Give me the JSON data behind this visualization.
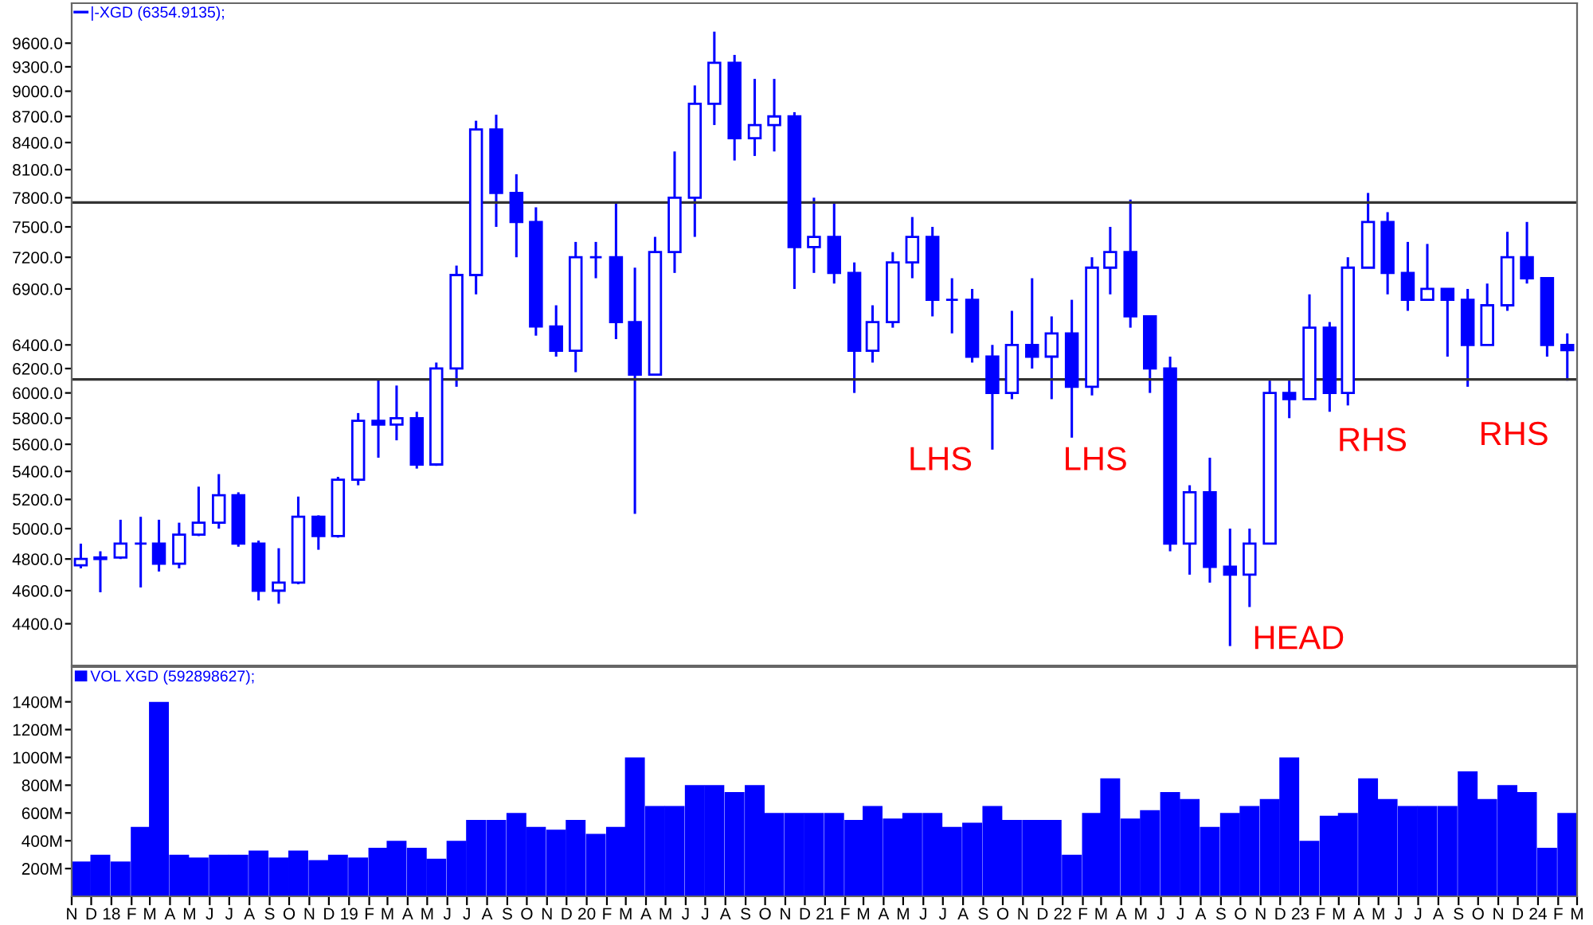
{
  "chart_data": [
    {
      "type": "candlestick",
      "log": true,
      "tick_labels": "y",
      "legend": "top left",
      "grid": false,
      "series": [
        {
          "name": "|-XGD (6354.9135);",
          "color": "#0000ff",
          "x": [
            "2017-11-15",
            "2017-12-15",
            "2018-01-15",
            "2018-02-15",
            "2018-03-15",
            "2018-04-15",
            "2018-05-15",
            "2018-06-15",
            "2018-07-15",
            "2018-08-15",
            "2018-09-15",
            "2018-10-15",
            "2018-11-15",
            "2018-12-15",
            "2019-01-15",
            "2019-02-15",
            "2019-03-15",
            "2019-04-15",
            "2019-05-15",
            "2019-06-15",
            "2019-07-15",
            "2019-08-15",
            "2019-09-15",
            "2019-10-15",
            "2019-11-15",
            "2019-12-15",
            "2020-01-15",
            "2020-02-15",
            "2020-03-15",
            "2020-04-15",
            "2020-05-15",
            "2020-06-15",
            "2020-07-15",
            "2020-08-15",
            "2020-09-15",
            "2020-10-15",
            "2020-11-15",
            "2020-12-15",
            "2021-01-15",
            "2021-02-15",
            "2021-03-15",
            "2021-04-15",
            "2021-05-15",
            "2021-06-15",
            "2021-07-15",
            "2021-08-15",
            "2021-09-15",
            "2021-10-15",
            "2021-11-15",
            "2021-12-15",
            "2022-01-15",
            "2022-02-15",
            "2022-03-15",
            "2022-04-15",
            "2022-05-15",
            "2022-06-15",
            "2022-07-15",
            "2022-08-15",
            "2022-09-15",
            "2022-10-15",
            "2022-11-15",
            "2022-12-15",
            "2023-01-15",
            "2023-02-15",
            "2023-03-15",
            "2023-04-15",
            "2023-05-15",
            "2023-06-15",
            "2023-07-15",
            "2023-08-15",
            "2023-09-15",
            "2023-10-15",
            "2023-11-15",
            "2023-12-15",
            "2024-01-15",
            "2024-02-15"
          ],
          "ohlc": [
            [
              4760,
              4900,
              4740,
              4800
            ],
            [
              4800,
              4850,
              4590,
              4810
            ],
            [
              4810,
              5060,
              4800,
              4900
            ],
            [
              4900,
              5080,
              4620,
              4900
            ],
            [
              4900,
              5060,
              4720,
              4770
            ],
            [
              4770,
              5040,
              4740,
              4960
            ],
            [
              4960,
              5290,
              4950,
              5040
            ],
            [
              5040,
              5380,
              5000,
              5230
            ],
            [
              5230,
              5250,
              4880,
              4900
            ],
            [
              4900,
              4920,
              4540,
              4600
            ],
            [
              4600,
              4870,
              4520,
              4650
            ],
            [
              4650,
              5220,
              4640,
              5080
            ],
            [
              5080,
              5090,
              4860,
              4950
            ],
            [
              4950,
              5360,
              4940,
              5340
            ],
            [
              5340,
              5840,
              5300,
              5780
            ],
            [
              5780,
              6120,
              5500,
              5750
            ],
            [
              5750,
              6060,
              5630,
              5800
            ],
            [
              5800,
              5850,
              5420,
              5450
            ],
            [
              5450,
              6250,
              5440,
              6200
            ],
            [
              6200,
              7120,
              6050,
              7030
            ],
            [
              7030,
              8650,
              6850,
              8550
            ],
            [
              8550,
              8720,
              7500,
              7850
            ],
            [
              7850,
              8050,
              7200,
              7550
            ],
            [
              7550,
              7700,
              6480,
              6560
            ],
            [
              6560,
              6750,
              6300,
              6350
            ],
            [
              6350,
              7350,
              6170,
              7200
            ],
            [
              7200,
              7350,
              7000,
              7200
            ],
            [
              7200,
              7750,
              6450,
              6600
            ],
            [
              6600,
              7100,
              5100,
              6150
            ],
            [
              6150,
              7400,
              6150,
              7250
            ],
            [
              7250,
              8300,
              7050,
              7800
            ],
            [
              7800,
              9070,
              7400,
              8850
            ],
            [
              8850,
              9750,
              8600,
              9350
            ],
            [
              9350,
              9450,
              8200,
              8450
            ],
            [
              8450,
              9150,
              8250,
              8600
            ],
            [
              8600,
              9150,
              8300,
              8700
            ],
            [
              8700,
              8750,
              6900,
              7300
            ],
            [
              7300,
              7800,
              7050,
              7400
            ],
            [
              7400,
              7750,
              6950,
              7050
            ],
            [
              7050,
              7150,
              6000,
              6350
            ],
            [
              6350,
              6750,
              6250,
              6600
            ],
            [
              6600,
              7250,
              6550,
              7150
            ],
            [
              7150,
              7600,
              7000,
              7400
            ],
            [
              7400,
              7500,
              6650,
              6800
            ],
            [
              6800,
              7000,
              6500,
              6800
            ],
            [
              6800,
              6900,
              6250,
              6300
            ],
            [
              6300,
              6400,
              5560,
              6000
            ],
            [
              6000,
              6700,
              5950,
              6400
            ],
            [
              6400,
              7000,
              6200,
              6300
            ],
            [
              6300,
              6650,
              5950,
              6500
            ],
            [
              6500,
              6800,
              5650,
              6050
            ],
            [
              6050,
              7200,
              5980,
              7100
            ],
            [
              7100,
              7500,
              6850,
              7250
            ],
            [
              7250,
              7780,
              6550,
              6650
            ],
            [
              6650,
              6650,
              6000,
              6200
            ],
            [
              6200,
              6300,
              4850,
              4900
            ],
            [
              4900,
              5300,
              4700,
              5250
            ],
            [
              5250,
              5500,
              4650,
              4750
            ],
            [
              4750,
              5000,
              4270,
              4700
            ],
            [
              4700,
              5000,
              4500,
              4900
            ],
            [
              4900,
              6100,
              4900,
              6000
            ],
            [
              6000,
              6100,
              5800,
              5950
            ],
            [
              5950,
              6850,
              5950,
              6550
            ],
            [
              6550,
              6600,
              5850,
              6000
            ],
            [
              6000,
              7200,
              5900,
              7100
            ],
            [
              7100,
              7850,
              7100,
              7550
            ],
            [
              7550,
              7650,
              6850,
              7050
            ],
            [
              7050,
              7350,
              6700,
              6800
            ],
            [
              6800,
              7330,
              6800,
              6900
            ],
            [
              6900,
              6900,
              6300,
              6800
            ],
            [
              6800,
              6900,
              6050,
              6400
            ],
            [
              6400,
              6950,
              6400,
              6750
            ],
            [
              6750,
              7450,
              6700,
              7200
            ],
            [
              7200,
              7550,
              6950,
              7000
            ],
            [
              7000,
              7000,
              6300,
              6400
            ],
            [
              6400,
              6500,
              6100,
              6355
            ]
          ]
        }
      ],
      "xlim": [
        "2017-11-01",
        "2024-03-01"
      ],
      "ylim": [
        4160,
        10130
      ],
      "yticks": [
        {
          "value": 4400,
          "label": "4400.0"
        },
        {
          "value": 4600,
          "label": "4600.0"
        },
        {
          "value": 4800,
          "label": "4800.0"
        },
        {
          "value": 5000,
          "label": "5000.0"
        },
        {
          "value": 5200,
          "label": "5200.0"
        },
        {
          "value": 5400,
          "label": "5400.0"
        },
        {
          "value": 5600,
          "label": "5600.0"
        },
        {
          "value": 5800,
          "label": "5800.0"
        },
        {
          "value": 6000,
          "label": "6000.0"
        },
        {
          "value": 6200,
          "label": "6200.0"
        },
        {
          "value": 6400,
          "label": "6400.0"
        },
        {
          "value": 6900,
          "label": "6900.0"
        },
        {
          "value": 7200,
          "label": "7200.0"
        },
        {
          "value": 7500,
          "label": "7500.0"
        },
        {
          "value": 7800,
          "label": "7800.0"
        },
        {
          "value": 8100,
          "label": "8100.0"
        },
        {
          "value": 8400,
          "label": "8400.0"
        },
        {
          "value": 8700,
          "label": "8700.0"
        },
        {
          "value": 9000,
          "label": "9000.0"
        },
        {
          "value": 9300,
          "label": "9300.0"
        },
        {
          "value": 9600,
          "label": "9600.0"
        }
      ],
      "ref_lines": [
        {
          "axis": "y",
          "value": 7750,
          "color": "#333333"
        },
        {
          "axis": "y",
          "value": 6110,
          "color": "#333333"
        }
      ],
      "annotations": [
        "LHS",
        "LHS",
        "HEAD",
        "RHS",
        "RHS"
      ]
    },
    {
      "type": "bar",
      "legend": "top left",
      "grid": false,
      "series": [
        {
          "name": "VOL XGD (592898627);",
          "color": "#0000ff",
          "values": [
            250,
            300,
            250,
            500,
            1400,
            300,
            280,
            300,
            300,
            330,
            280,
            330,
            260,
            300,
            280,
            350,
            400,
            350,
            270,
            400,
            550,
            550,
            600,
            500,
            480,
            550,
            450,
            500,
            1000,
            650,
            650,
            800,
            800,
            750,
            800,
            600,
            600,
            600,
            600,
            550,
            650,
            560,
            600,
            600,
            500,
            530,
            650,
            550,
            550,
            550,
            300,
            600,
            850,
            560,
            620,
            750,
            700,
            500,
            600,
            650,
            700,
            1000,
            400,
            580,
            600,
            850,
            700,
            650,
            650,
            650,
            900,
            700,
            800,
            750,
            350,
            600
          ]
        }
      ],
      "x": [
        "2017-11-15",
        "2017-12-15",
        "2018-01-15",
        "2018-02-15",
        "2018-03-15",
        "2018-04-15",
        "2018-05-15",
        "2018-06-15",
        "2018-07-15",
        "2018-08-15",
        "2018-09-15",
        "2018-10-15",
        "2018-11-15",
        "2018-12-15",
        "2019-01-15",
        "2019-02-15",
        "2019-03-15",
        "2019-04-15",
        "2019-05-15",
        "2019-06-15",
        "2019-07-15",
        "2019-08-15",
        "2019-09-15",
        "2019-10-15",
        "2019-11-15",
        "2019-12-15",
        "2020-01-15",
        "2020-02-15",
        "2020-03-15",
        "2020-04-15",
        "2020-05-15",
        "2020-06-15",
        "2020-07-15",
        "2020-08-15",
        "2020-09-15",
        "2020-10-15",
        "2020-11-15",
        "2020-12-15",
        "2021-01-15",
        "2021-02-15",
        "2021-03-15",
        "2021-04-15",
        "2021-05-15",
        "2021-06-15",
        "2021-07-15",
        "2021-08-15",
        "2021-09-15",
        "2021-10-15",
        "2021-11-15",
        "2021-12-15",
        "2022-01-15",
        "2022-02-15",
        "2022-03-15",
        "2022-04-15",
        "2022-05-15",
        "2022-06-15",
        "2022-07-15",
        "2022-08-15",
        "2022-09-15",
        "2022-10-15",
        "2022-11-15",
        "2022-12-15",
        "2023-01-15",
        "2023-02-15",
        "2023-03-15",
        "2023-04-15",
        "2023-05-15",
        "2023-06-15",
        "2023-07-15",
        "2023-08-15",
        "2023-09-15",
        "2023-10-15",
        "2023-11-15",
        "2023-12-15",
        "2024-01-15",
        "2024-02-15"
      ],
      "xlim": [
        "2017-11-01",
        "2024-03-01"
      ],
      "ylim": [
        0,
        1650
      ],
      "yticks": [
        {
          "value": 200,
          "label": "200M"
        },
        {
          "value": 400,
          "label": "400M"
        },
        {
          "value": 600,
          "label": "600M"
        },
        {
          "value": 800,
          "label": "800M"
        },
        {
          "value": 1000,
          "label": "1000M"
        },
        {
          "value": 1200,
          "label": "1200M"
        },
        {
          "value": 1400,
          "label": "1400M"
        }
      ],
      "xticks": [
        {
          "value": "2017-11-01",
          "label": "N"
        },
        {
          "value": "2017-12-01",
          "label": "D"
        },
        {
          "value": "2018-01-01",
          "label": "18"
        },
        {
          "value": "2018-02-01",
          "label": "F"
        },
        {
          "value": "2018-03-01",
          "label": "M"
        },
        {
          "value": "2018-04-01",
          "label": "A"
        },
        {
          "value": "2018-05-01",
          "label": "M"
        },
        {
          "value": "2018-06-01",
          "label": "J"
        },
        {
          "value": "2018-07-01",
          "label": "J"
        },
        {
          "value": "2018-08-01",
          "label": "A"
        },
        {
          "value": "2018-09-01",
          "label": "S"
        },
        {
          "value": "2018-10-01",
          "label": "O"
        },
        {
          "value": "2018-11-01",
          "label": "N"
        },
        {
          "value": "2018-12-01",
          "label": "D"
        },
        {
          "value": "2019-01-01",
          "label": "19"
        },
        {
          "value": "2019-02-01",
          "label": "F"
        },
        {
          "value": "2019-03-01",
          "label": "M"
        },
        {
          "value": "2019-04-01",
          "label": "A"
        },
        {
          "value": "2019-05-01",
          "label": "M"
        },
        {
          "value": "2019-06-01",
          "label": "J"
        },
        {
          "value": "2019-07-01",
          "label": "J"
        },
        {
          "value": "2019-08-01",
          "label": "A"
        },
        {
          "value": "2019-09-01",
          "label": "S"
        },
        {
          "value": "2019-10-01",
          "label": "O"
        },
        {
          "value": "2019-11-01",
          "label": "N"
        },
        {
          "value": "2019-12-01",
          "label": "D"
        },
        {
          "value": "2020-01-01",
          "label": "20"
        },
        {
          "value": "2020-02-01",
          "label": "F"
        },
        {
          "value": "2020-03-01",
          "label": "M"
        },
        {
          "value": "2020-04-01",
          "label": "A"
        },
        {
          "value": "2020-05-01",
          "label": "M"
        },
        {
          "value": "2020-06-01",
          "label": "J"
        },
        {
          "value": "2020-07-01",
          "label": "J"
        },
        {
          "value": "2020-08-01",
          "label": "A"
        },
        {
          "value": "2020-09-01",
          "label": "S"
        },
        {
          "value": "2020-10-01",
          "label": "O"
        },
        {
          "value": "2020-11-01",
          "label": "N"
        },
        {
          "value": "2020-12-01",
          "label": "D"
        },
        {
          "value": "2021-01-01",
          "label": "21"
        },
        {
          "value": "2021-02-01",
          "label": "F"
        },
        {
          "value": "2021-03-01",
          "label": "M"
        },
        {
          "value": "2021-04-01",
          "label": "A"
        },
        {
          "value": "2021-05-01",
          "label": "M"
        },
        {
          "value": "2021-06-01",
          "label": "J"
        },
        {
          "value": "2021-07-01",
          "label": "J"
        },
        {
          "value": "2021-08-01",
          "label": "A"
        },
        {
          "value": "2021-09-01",
          "label": "S"
        },
        {
          "value": "2021-10-01",
          "label": "O"
        },
        {
          "value": "2021-11-01",
          "label": "N"
        },
        {
          "value": "2021-12-01",
          "label": "D"
        },
        {
          "value": "2022-01-01",
          "label": "22"
        },
        {
          "value": "2022-02-01",
          "label": "F"
        },
        {
          "value": "2022-03-01",
          "label": "M"
        },
        {
          "value": "2022-04-01",
          "label": "A"
        },
        {
          "value": "2022-05-01",
          "label": "M"
        },
        {
          "value": "2022-06-01",
          "label": "J"
        },
        {
          "value": "2022-07-01",
          "label": "J"
        },
        {
          "value": "2022-08-01",
          "label": "A"
        },
        {
          "value": "2022-09-01",
          "label": "S"
        },
        {
          "value": "2022-10-01",
          "label": "O"
        },
        {
          "value": "2022-11-01",
          "label": "N"
        },
        {
          "value": "2022-12-01",
          "label": "D"
        },
        {
          "value": "2023-01-01",
          "label": "23"
        },
        {
          "value": "2023-02-01",
          "label": "F"
        },
        {
          "value": "2023-03-01",
          "label": "M"
        },
        {
          "value": "2023-04-01",
          "label": "A"
        },
        {
          "value": "2023-05-01",
          "label": "M"
        },
        {
          "value": "2023-06-01",
          "label": "J"
        },
        {
          "value": "2023-07-01",
          "label": "J"
        },
        {
          "value": "2023-08-01",
          "label": "A"
        },
        {
          "value": "2023-09-01",
          "label": "S"
        },
        {
          "value": "2023-10-01",
          "label": "O"
        },
        {
          "value": "2023-11-01",
          "label": "N"
        },
        {
          "value": "2023-12-01",
          "label": "D"
        },
        {
          "value": "2024-01-01",
          "label": "24"
        },
        {
          "value": "2024-02-01",
          "label": "F"
        },
        {
          "value": "2024-03-01",
          "label": "M"
        }
      ]
    }
  ]
}
